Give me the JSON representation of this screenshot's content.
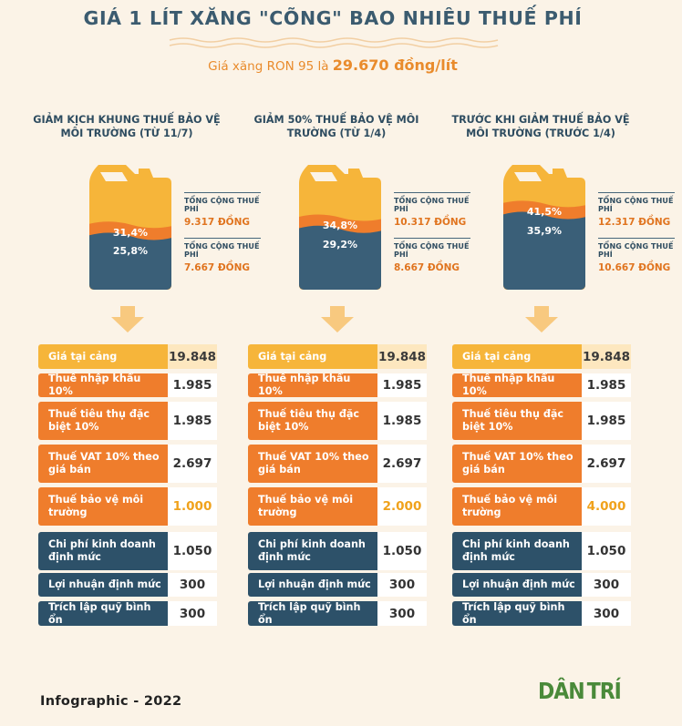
{
  "title": "GIÁ 1 LÍT XĂNG \"CÕNG\" BAO NHIÊU THUẾ PHÍ",
  "subtitle_prefix": "Giá xăng RON 95 là ",
  "subtitle_price": "29.670 đồng/lít",
  "colors": {
    "orange": "#ef7d2c",
    "yellow": "#f6b53a",
    "navy": "#2d5169",
    "can_yellow": "#f6b53a",
    "can_orange": "#ef7d2c",
    "can_navy": "#3a5f78"
  },
  "row_labels": {
    "port": "Giá tại cảng",
    "import": "Thuế nhập khẩu 10%",
    "excise": "Thuế tiêu thụ đặc biệt 10%",
    "vat": "Thuế VAT 10% theo giá bán",
    "env": "Thuế bảo vệ môi trường",
    "biz": "Chi phí kinh doanh định mức",
    "profit": "Lợi nhuận định mức",
    "fund": "Trích lập quỹ bình ổn"
  },
  "columns": [
    {
      "heading": "GIẢM KỊCH KHUNG THUẾ BẢO VỆ MÔI TRƯỜNG (TỪ 11/7)",
      "pct_top": "31,4%",
      "pct_bottom": "25,8%",
      "pct_top_value": 31.4,
      "pct_bottom_value": 25.8,
      "ann1_label": "TỔNG CỘNG THUẾ PHÍ",
      "ann1_value": "9.317 ĐỒNG",
      "ann2_label": "TỔNG CỘNG THUẾ PHÍ",
      "ann2_value": "7.667 ĐỒNG",
      "values": {
        "port": "19.848",
        "import": "1.985",
        "excise": "1.985",
        "vat": "2.697",
        "env": "1.000",
        "biz": "1.050",
        "profit": "300",
        "fund": "300"
      }
    },
    {
      "heading": "GIẢM 50% THUẾ BẢO VỆ MÔI TRƯỜNG (TỪ 1/4)",
      "pct_top": "34,8%",
      "pct_bottom": "29,2%",
      "pct_top_value": 34.8,
      "pct_bottom_value": 29.2,
      "ann1_label": "TỔNG CỘNG THUẾ PHÍ",
      "ann1_value": "10.317 ĐỒNG",
      "ann2_label": "TỔNG CỘNG THUẾ PHÍ",
      "ann2_value": "8.667 ĐỒNG",
      "values": {
        "port": "19.848",
        "import": "1.985",
        "excise": "1.985",
        "vat": "2.697",
        "env": "2.000",
        "biz": "1.050",
        "profit": "300",
        "fund": "300"
      }
    },
    {
      "heading": "TRƯỚC KHI GIẢM THUẾ BẢO VỆ MÔI TRƯỜNG (TRƯỚC 1/4)",
      "pct_top": "41,5%",
      "pct_bottom": "35,9%",
      "pct_top_value": 41.5,
      "pct_bottom_value": 35.9,
      "ann1_label": "TỔNG CỘNG THUẾ PHÍ",
      "ann1_value": "12.317 ĐỒNG",
      "ann2_label": "TỔNG CỘNG THUẾ PHÍ",
      "ann2_value": "10.667 ĐỒNG",
      "values": {
        "port": "19.848",
        "import": "1.985",
        "excise": "1.985",
        "vat": "2.697",
        "env": "4.000",
        "biz": "1.050",
        "profit": "300",
        "fund": "300"
      }
    }
  ],
  "footer": "Infographic - 2022",
  "logo": {
    "part1": "DÂN",
    "part2": "TRÍ"
  }
}
